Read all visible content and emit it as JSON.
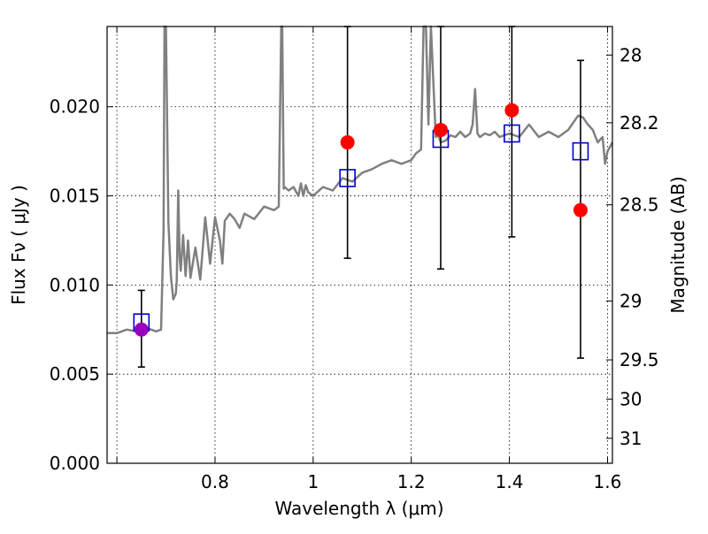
{
  "chart_data": {
    "type": "scatter",
    "xlabel": "Wavelength  λ (μm)",
    "ylabel": "Flux  Fν  ( μJy )",
    "y2label": "Magnitude (AB)",
    "xlim": [
      0.58,
      1.61
    ],
    "ylim": [
      0.0,
      0.0245
    ],
    "grid": true,
    "x_ticks": [
      {
        "value": 0.6,
        "label": ""
      },
      {
        "value": 0.8,
        "label": "0.8"
      },
      {
        "value": 1.0,
        "label": "1"
      },
      {
        "value": 1.2,
        "label": "1.2"
      },
      {
        "value": 1.4,
        "label": "1.4"
      },
      {
        "value": 1.6,
        "label": "1.6"
      }
    ],
    "y_ticks": [
      {
        "value": 0.0,
        "label": "0.000"
      },
      {
        "value": 0.005,
        "label": "0.005"
      },
      {
        "value": 0.01,
        "label": "0.010"
      },
      {
        "value": 0.015,
        "label": "0.015"
      },
      {
        "value": 0.02,
        "label": "0.020"
      }
    ],
    "y2_ticks": [
      {
        "value": 28,
        "label": "28",
        "flux": 0.0229
      },
      {
        "value": 28.2,
        "label": "28.2",
        "flux": 0.0191
      },
      {
        "value": 28.5,
        "label": "28.5",
        "flux": 0.0145
      },
      {
        "value": 29,
        "label": "29",
        "flux": 0.0091
      },
      {
        "value": 29.5,
        "label": "29.5",
        "flux": 0.0058
      },
      {
        "value": 30,
        "label": "30",
        "flux": 0.0036
      },
      {
        "value": 31,
        "label": "31",
        "flux": 0.0014
      }
    ],
    "model_spectrum": {
      "color": "#808080",
      "x": [
        0.58,
        0.6,
        0.62,
        0.64,
        0.66,
        0.68,
        0.69,
        0.695,
        0.697,
        0.7,
        0.705,
        0.71,
        0.715,
        0.72,
        0.722,
        0.725,
        0.728,
        0.73,
        0.735,
        0.74,
        0.745,
        0.75,
        0.76,
        0.77,
        0.78,
        0.79,
        0.8,
        0.81,
        0.815,
        0.82,
        0.83,
        0.84,
        0.85,
        0.86,
        0.88,
        0.9,
        0.92,
        0.93,
        0.935,
        0.937,
        0.94,
        0.942,
        0.95,
        0.96,
        0.97,
        0.975,
        0.98,
        0.985,
        0.99,
        1.0,
        1.02,
        1.04,
        1.06,
        1.08,
        1.1,
        1.12,
        1.14,
        1.16,
        1.18,
        1.2,
        1.21,
        1.22,
        1.225,
        1.23,
        1.235,
        1.24,
        1.25,
        1.255,
        1.26,
        1.27,
        1.28,
        1.29,
        1.3,
        1.31,
        1.32,
        1.325,
        1.33,
        1.335,
        1.34,
        1.35,
        1.36,
        1.37,
        1.38,
        1.4,
        1.42,
        1.44,
        1.46,
        1.48,
        1.5,
        1.52,
        1.54,
        1.55,
        1.56,
        1.57,
        1.58,
        1.59,
        1.595,
        1.6,
        1.61
      ],
      "y": [
        0.0073,
        0.0073,
        0.0075,
        0.0074,
        0.0076,
        0.0074,
        0.0075,
        0.013,
        0.0245,
        0.0245,
        0.0135,
        0.0105,
        0.0092,
        0.0095,
        0.0102,
        0.0153,
        0.0115,
        0.0108,
        0.0128,
        0.0105,
        0.0125,
        0.0104,
        0.0121,
        0.0103,
        0.0138,
        0.0112,
        0.0138,
        0.0125,
        0.0112,
        0.0136,
        0.014,
        0.0137,
        0.0132,
        0.014,
        0.0137,
        0.0144,
        0.0142,
        0.0144,
        0.0245,
        0.0245,
        0.0154,
        0.0155,
        0.0153,
        0.0155,
        0.015,
        0.0157,
        0.015,
        0.0156,
        0.0152,
        0.015,
        0.0155,
        0.0153,
        0.016,
        0.0158,
        0.0163,
        0.0165,
        0.0168,
        0.017,
        0.0168,
        0.017,
        0.0174,
        0.0176,
        0.0245,
        0.0245,
        0.019,
        0.0245,
        0.0183,
        0.0184,
        0.018,
        0.0181,
        0.0184,
        0.0183,
        0.0186,
        0.0183,
        0.0185,
        0.019,
        0.021,
        0.0185,
        0.0183,
        0.0185,
        0.0184,
        0.0186,
        0.0183,
        0.0185,
        0.0183,
        0.019,
        0.0183,
        0.0186,
        0.0183,
        0.0187,
        0.0195,
        0.0194,
        0.019,
        0.0187,
        0.018,
        0.0183,
        0.0168,
        0.0175,
        0.018
      ]
    },
    "series": [
      {
        "marker": "open-square",
        "color": "#0000cc",
        "x": [
          0.65,
          1.07,
          1.26,
          1.405,
          1.545
        ],
        "y": [
          0.0079,
          0.016,
          0.0182,
          0.0185,
          0.0175
        ]
      },
      {
        "marker": "filled-circle",
        "color": "#ff0000",
        "x": [
          0.65,
          1.07,
          1.26,
          1.405,
          1.545
        ],
        "y": [
          0.0075,
          0.018,
          0.0187,
          0.0198,
          0.0142
        ],
        "point_colors": [
          "#9900bb",
          "#ff0000",
          "#ff0000",
          "#ff0000",
          "#ff0000"
        ],
        "yerr_low": [
          0.0054,
          0.0115,
          0.0109,
          0.0127,
          0.0059
        ],
        "yerr_high": [
          0.0097,
          0.0245,
          0.0245,
          0.0245,
          0.0226
        ],
        "errorbar_color": "#000000"
      }
    ]
  }
}
